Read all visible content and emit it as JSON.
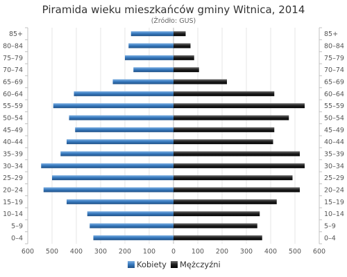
{
  "chart_data": {
    "type": "bar",
    "orientation": "horizontal",
    "layout": "population-pyramid",
    "title": "Piramida wieku mieszkańców gminy Witnica, 2014",
    "subtitle": "(Źródło: GUS)",
    "categories": [
      "0–4",
      "5–9",
      "10–14",
      "15–19",
      "20–24",
      "25–29",
      "30–34",
      "35–39",
      "40–44",
      "45–49",
      "50–54",
      "55–59",
      "60–64",
      "65–69",
      "70–74",
      "75–79",
      "80–84",
      "85+"
    ],
    "series": [
      {
        "name": "Kobiety",
        "side": "left",
        "color": "#3a7cc0",
        "values": [
          330,
          345,
          355,
          440,
          535,
          500,
          545,
          465,
          440,
          405,
          430,
          495,
          410,
          250,
          165,
          200,
          185,
          175
        ]
      },
      {
        "name": "Mężczyźni",
        "side": "right",
        "color": "#222222",
        "values": [
          365,
          345,
          355,
          425,
          520,
          490,
          540,
          520,
          410,
          415,
          475,
          540,
          415,
          220,
          105,
          85,
          70,
          50
        ]
      }
    ],
    "xlim": [
      -600,
      600
    ],
    "x_ticks": [
      600,
      500,
      400,
      300,
      200,
      100,
      0,
      100,
      200,
      300,
      400,
      500,
      600
    ],
    "grid": true,
    "legend_position": "bottom-center",
    "category_order": "bottom-to-top"
  }
}
